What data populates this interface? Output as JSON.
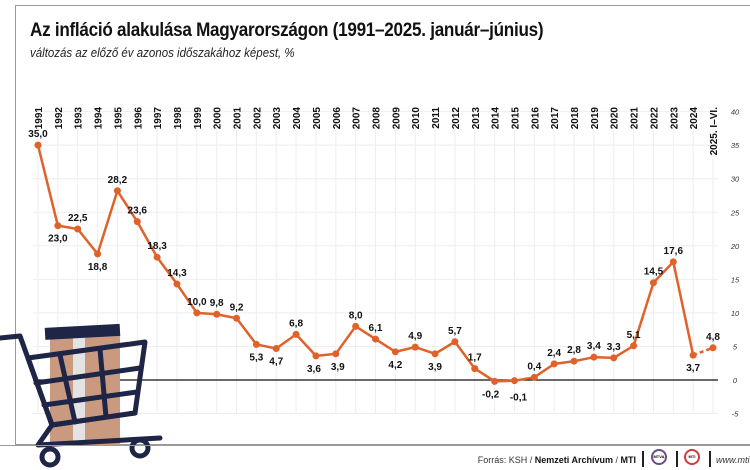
{
  "chart_data": {
    "type": "line",
    "title": "Az infláció alakulása Magyarországon (1991–2025. január–június)",
    "subtitle": "változás az előző év azonos időszakához képest, %",
    "categories": [
      "1991",
      "1992",
      "1993",
      "1994",
      "1995",
      "1996",
      "1997",
      "1998",
      "1999",
      "2000",
      "2001",
      "2002",
      "2003",
      "2004",
      "2005",
      "2006",
      "2007",
      "2008",
      "2009",
      "2010",
      "2011",
      "2012",
      "2013",
      "2014",
      "2015",
      "2016",
      "2017",
      "2018",
      "2019",
      "2020",
      "2021",
      "2022",
      "2023",
      "2024",
      "2025. I–VI."
    ],
    "values": [
      35.0,
      23.0,
      22.5,
      18.8,
      28.2,
      23.6,
      18.3,
      14.3,
      10.0,
      9.8,
      9.2,
      5.3,
      4.7,
      6.8,
      3.6,
      3.9,
      8.0,
      6.1,
      4.2,
      4.9,
      3.9,
      5.7,
      1.7,
      -0.2,
      -0.1,
      0.4,
      2.4,
      2.8,
      3.4,
      3.3,
      5.1,
      14.5,
      17.6,
      3.7,
      4.8
    ],
    "data_labels": [
      "35,0",
      "23,0",
      "22,5",
      "18,8",
      "28,2",
      "23,6",
      "18,3",
      "14,3",
      "10,0",
      "9,8",
      "9,2",
      "5,3",
      "4,7",
      "6,8",
      "3,6",
      "3,9",
      "8,0",
      "6,1",
      "4,2",
      "4,9",
      "3,9",
      "5,7",
      "1,7",
      "-0,2",
      "-0,1",
      "0,4",
      "2,4",
      "2,8",
      "3,4",
      "3,3",
      "5,1",
      "14,5",
      "17,6",
      "3,7",
      "4,8"
    ],
    "y_ticks": [
      "40",
      "35",
      "30",
      "25",
      "20",
      "15",
      "10",
      "5",
      "0",
      "-5"
    ],
    "y_tick_values": [
      40,
      35,
      30,
      25,
      20,
      15,
      10,
      5,
      0,
      -5
    ],
    "ylim": [
      -5,
      40
    ],
    "y_axis_side": "right",
    "grid": true,
    "last_segment_style": "dashed",
    "line_color": "#e0622a"
  },
  "footer": {
    "source_prefix": "Forrás: KSH / ",
    "source_archive": "Nemzeti Archívum",
    "source_sep": " / ",
    "source_mti": "MTI",
    "logo1": "MTVA",
    "logo2": "MTI",
    "website": "www.mti.hu"
  },
  "colors": {
    "cart": "#1f2547",
    "box": "#c99a80",
    "tape": "#e3e3e3",
    "line": "#e0622a"
  }
}
